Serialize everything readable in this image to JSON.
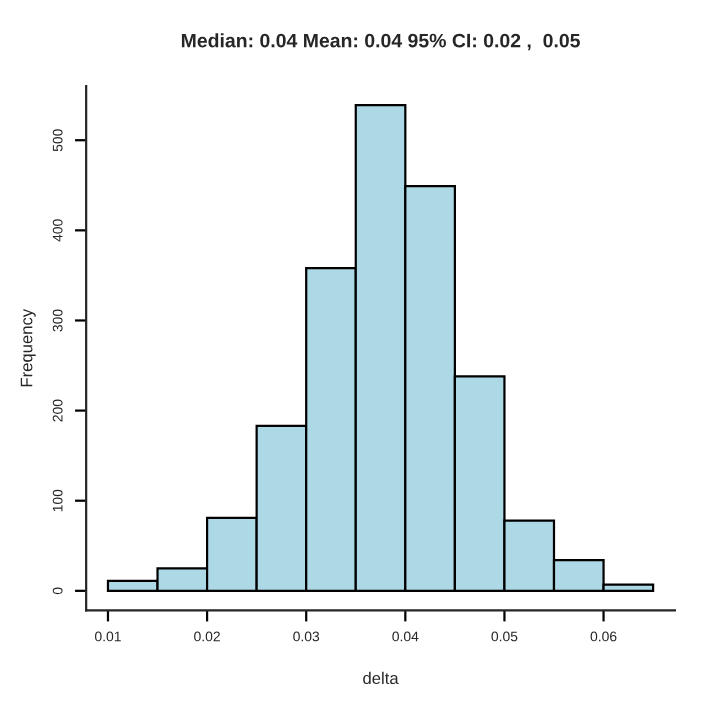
{
  "chart_data": {
    "type": "histogram",
    "title": "Median: 0.04 Mean: 0.04 95% CI: 0.02 ,  0.05",
    "xlabel": "delta",
    "ylabel": "Frequency",
    "bins": [
      0.01,
      0.015,
      0.02,
      0.025,
      0.03,
      0.035,
      0.04,
      0.045,
      0.05,
      0.055,
      0.06,
      0.065
    ],
    "values": [
      11,
      25,
      81,
      183,
      358,
      539,
      449,
      238,
      78,
      34,
      7
    ],
    "color": "#add8e6",
    "xlim": [
      0.0078,
      0.0672
    ],
    "ylim": [
      -21.6,
      560
    ],
    "xticks": [
      0.01,
      0.02,
      0.03,
      0.04,
      0.05,
      0.06
    ],
    "yticks": [
      0,
      100,
      200,
      300,
      400,
      500
    ],
    "grid": false
  }
}
